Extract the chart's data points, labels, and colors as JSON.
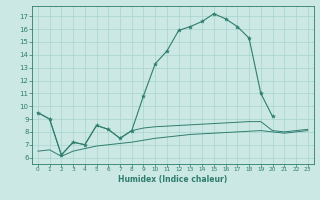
{
  "x": [
    0,
    1,
    2,
    3,
    4,
    5,
    6,
    7,
    8,
    9,
    10,
    11,
    12,
    13,
    14,
    15,
    16,
    17,
    18,
    19,
    20,
    21,
    22,
    23
  ],
  "line_main": [
    9.5,
    9.0,
    6.2,
    7.2,
    7.0,
    8.5,
    8.2,
    7.5,
    8.1,
    10.8,
    13.3,
    14.3,
    15.9,
    16.2,
    16.6,
    17.2,
    16.8,
    16.2,
    15.3,
    11.0,
    9.2,
    null,
    null,
    null
  ],
  "flat_upper": [
    9.5,
    9.0,
    6.2,
    7.2,
    7.0,
    8.5,
    8.2,
    7.5,
    8.1,
    8.3,
    8.4,
    8.45,
    8.5,
    8.55,
    8.6,
    8.65,
    8.7,
    8.75,
    8.8,
    8.8,
    8.1,
    8.0,
    8.1,
    8.2
  ],
  "flat_lower": [
    6.5,
    6.6,
    6.1,
    6.5,
    6.7,
    6.9,
    7.0,
    7.1,
    7.2,
    7.35,
    7.5,
    7.6,
    7.7,
    7.8,
    7.85,
    7.9,
    7.95,
    8.0,
    8.05,
    8.1,
    8.0,
    7.9,
    8.0,
    8.1
  ],
  "color": "#2e7d6e",
  "bg_color": "#cce8e4",
  "grid_color": "#a8d4cf",
  "xlabel": "Humidex (Indice chaleur)",
  "ylim": [
    5.5,
    17.8
  ],
  "xlim": [
    -0.5,
    23.5
  ],
  "yticks": [
    6,
    7,
    8,
    9,
    10,
    11,
    12,
    13,
    14,
    15,
    16,
    17
  ],
  "xticks": [
    0,
    1,
    2,
    3,
    4,
    5,
    6,
    7,
    8,
    9,
    10,
    11,
    12,
    13,
    14,
    15,
    16,
    17,
    18,
    19,
    20,
    21,
    22,
    23
  ]
}
